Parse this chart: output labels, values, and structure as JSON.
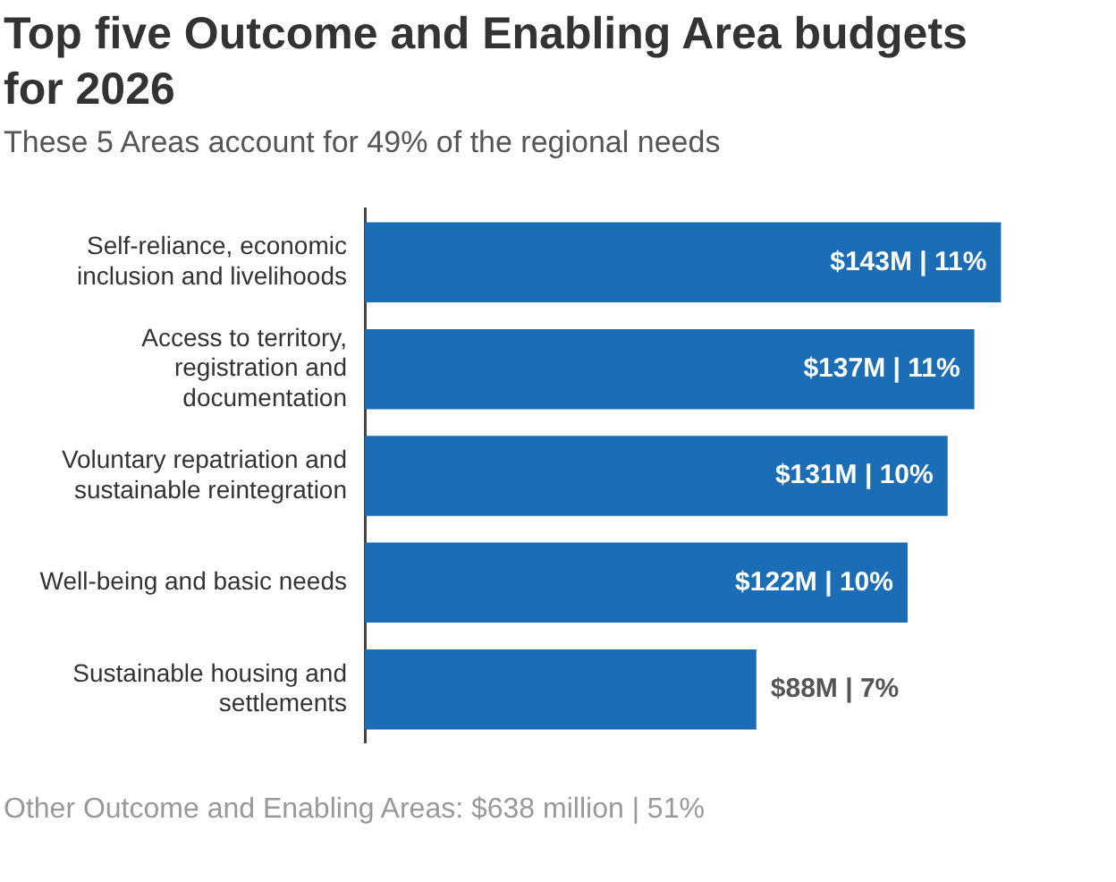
{
  "chart_data": {
    "type": "bar",
    "orientation": "horizontal",
    "title": "Top five Outcome and Enabling Area budgets for 2026",
    "subtitle": "These 5 Areas account for 49% of the regional needs",
    "categories": [
      "Self-reliance, economic inclusion and livelihoods",
      "Access to territory, registration and documentation",
      "Voluntary repatriation and sustainable reintegration",
      "Well-being and basic needs",
      "Sustainable housing and settlements"
    ],
    "values": [
      143000000,
      137000000,
      131000000,
      122000000,
      88000000
    ],
    "value_labels": [
      "$143M | 11%",
      "$137M | 11%",
      "$131M | 10%",
      "$122M | 10%",
      "$88M | 7%"
    ],
    "color": "#1b6db5",
    "grid": false,
    "legend": false,
    "annotations": [
      "Other Outcome and Enabling Areas: $638 million | 51%"
    ]
  }
}
